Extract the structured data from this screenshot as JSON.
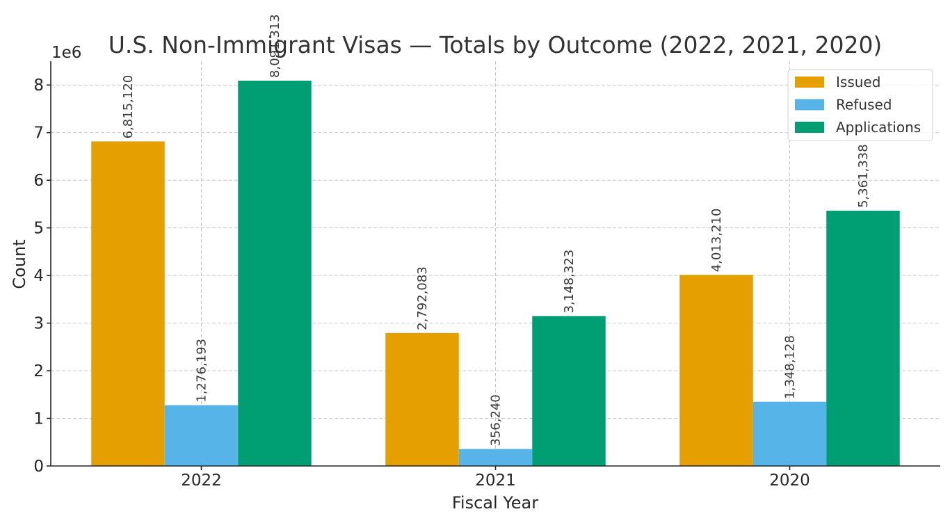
{
  "chart_data": {
    "type": "bar",
    "title": "U.S. Non-Immigrant Visas — Totals by Outcome (2022, 2021, 2020)",
    "xlabel": "Fiscal Year",
    "ylabel": "Count",
    "y_exponent_label": "1e6",
    "categories": [
      "2022",
      "2021",
      "2020"
    ],
    "series": [
      {
        "name": "Issued",
        "color": "#E69F00",
        "values": [
          6815120,
          2792083,
          4013210
        ],
        "labels": [
          "6,815,120",
          "2,792,083",
          "4,013,210"
        ]
      },
      {
        "name": "Refused",
        "color": "#56B4E9",
        "values": [
          1276193,
          356240,
          1348128
        ],
        "labels": [
          "1,276,193",
          "356,240",
          "1,348,128"
        ]
      },
      {
        "name": "Applications",
        "color": "#009E73",
        "values": [
          8091313,
          3148323,
          5361338
        ],
        "labels": [
          "8,091,313",
          "3,148,323",
          "5,361,338"
        ]
      }
    ],
    "y_ticks": [
      0,
      1,
      2,
      3,
      4,
      5,
      6,
      7,
      8
    ],
    "y_scale": 1000000,
    "ylim": [
      0,
      8500000
    ],
    "grid": true,
    "legend_position": "top-right"
  }
}
